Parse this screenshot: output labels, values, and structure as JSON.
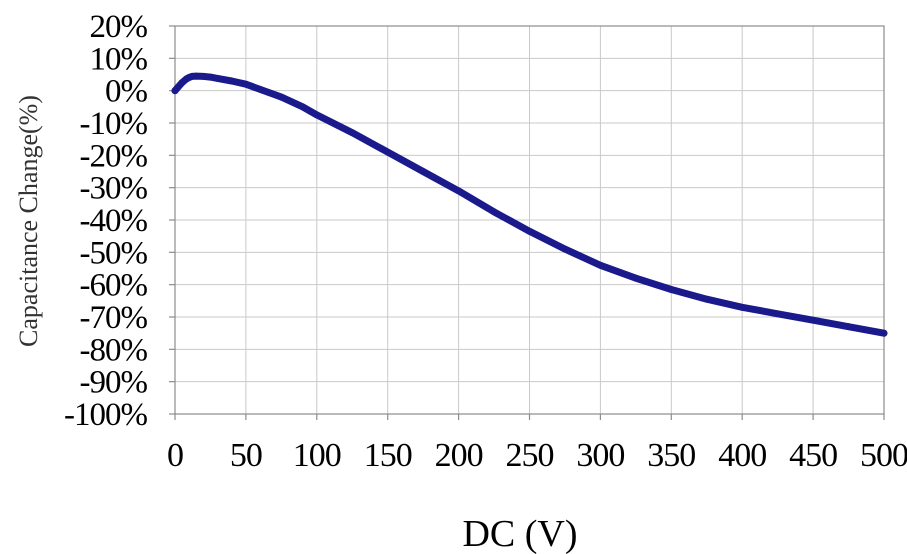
{
  "chart_data": {
    "type": "line",
    "title": "",
    "xlabel": "DC (V)",
    "ylabel": "Capacitance Change(%)",
    "xlim": [
      0,
      500
    ],
    "ylim": [
      -100,
      20
    ],
    "x_ticks": [
      0,
      50,
      100,
      150,
      200,
      250,
      300,
      350,
      400,
      450,
      500
    ],
    "x_tick_labels": [
      "0",
      "50",
      "100",
      "150",
      "200",
      "250",
      "300",
      "350",
      "400",
      "450",
      "500"
    ],
    "y_ticks": [
      20,
      10,
      0,
      -10,
      -20,
      -30,
      -40,
      -50,
      -60,
      -70,
      -80,
      -90,
      -100
    ],
    "y_tick_labels": [
      "20%",
      "10%",
      "0%",
      "-10%",
      "-20%",
      "-30%",
      "-40%",
      "-50%",
      "-60%",
      "-70%",
      "-80%",
      "-90%",
      "-100%"
    ],
    "grid": true,
    "legend": "none",
    "series": [
      {
        "color": "#1a1a8c",
        "x": [
          0,
          2,
          5,
          8,
          10,
          12,
          15,
          20,
          25,
          30,
          40,
          50,
          60,
          75,
          90,
          100,
          125,
          150,
          175,
          200,
          225,
          250,
          275,
          300,
          325,
          350,
          375,
          400,
          425,
          450,
          475,
          500
        ],
        "y": [
          0,
          1,
          2.5,
          3.6,
          4.1,
          4.4,
          4.5,
          4.4,
          4.2,
          3.8,
          3.0,
          2.0,
          0.4,
          -2,
          -5,
          -7.5,
          -13,
          -19,
          -25,
          -31,
          -37.5,
          -43.5,
          -49,
          -54,
          -58,
          -61.5,
          -64.5,
          -67,
          -69,
          -71,
          -73,
          -75
        ]
      }
    ]
  }
}
